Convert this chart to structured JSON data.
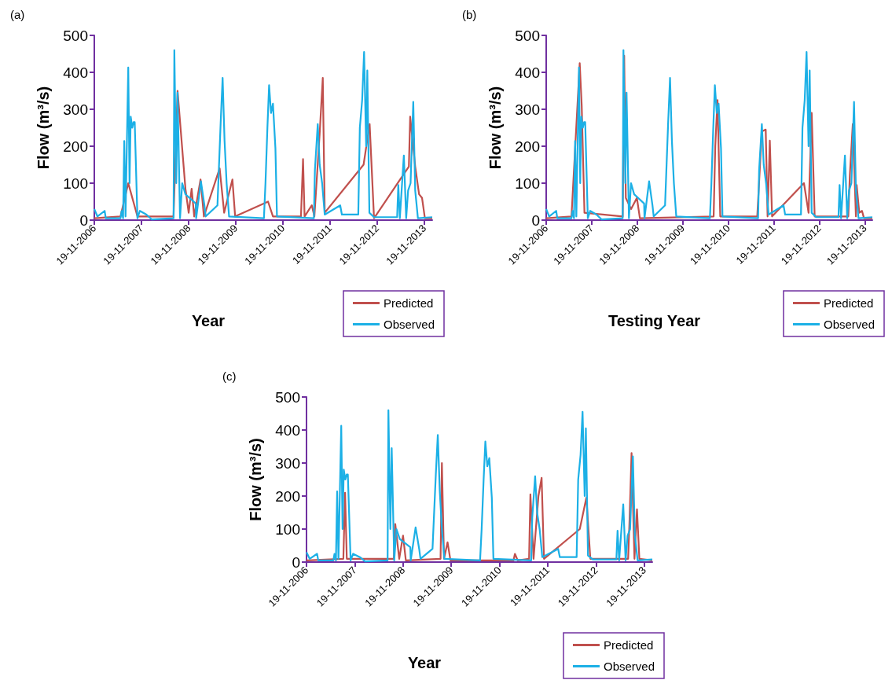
{
  "chart_data": [
    {
      "type": "line",
      "title": "(a)",
      "xlabel": "Year",
      "ylabel": "Flow (m³/s)",
      "xlim": [
        "2006-11-19",
        "2014-01-19"
      ],
      "xticks": [
        {
          "value": "2006-11-19",
          "label": "19-11-2006"
        },
        {
          "value": "2007-11-19",
          "label": "19-11-2007"
        },
        {
          "value": "2008-11-19",
          "label": "19-11-2008"
        },
        {
          "value": "2009-11-19",
          "label": "19-11-2009"
        },
        {
          "value": "2010-11-19",
          "label": "19-11-2010"
        },
        {
          "value": "2011-11-19",
          "label": "19-11-2011"
        },
        {
          "value": "2012-11-19",
          "label": "19-11-2012"
        },
        {
          "value": "2013-11-19",
          "label": "19-11-2013"
        }
      ],
      "ylim": [
        0,
        500
      ],
      "yticks": [
        0,
        100,
        200,
        300,
        400,
        500
      ],
      "legend": "bottom right",
      "marker": "none",
      "series": [
        {
          "name": "Predicted",
          "color": "#c0504d",
          "x": [
            "2006-11-19",
            "2007-06-10",
            "2007-08-09",
            "2007-10-19",
            "2008-07-25",
            "2008-08-25",
            "2008-10-25",
            "2008-11-19",
            "2008-12-12",
            "2009-01-01",
            "2009-02-19",
            "2009-03-17",
            "2009-07-17",
            "2009-08-21",
            "2009-10-24",
            "2009-11-14",
            "2010-07-27",
            "2010-09-03",
            "2011-04-08",
            "2011-04-24",
            "2011-05-06",
            "2011-07-01",
            "2011-07-21",
            "2011-08-31",
            "2011-09-24",
            "2011-10-09",
            "2012-08-05",
            "2012-09-21",
            "2012-10-25",
            "2013-07-22",
            "2013-08-01",
            "2013-09-09",
            "2013-10-09",
            "2013-11-01",
            "2013-11-23",
            "2014-01-19"
          ],
          "values": [
            5,
            10,
            100,
            10,
            10,
            350,
            85,
            20,
            85,
            10,
            110,
            10,
            140,
            20,
            110,
            10,
            50,
            10,
            10,
            165,
            10,
            40,
            10,
            235,
            385,
            20,
            150,
            260,
            5,
            145,
            280,
            145,
            70,
            60,
            5,
            5
          ]
        },
        {
          "name": "Observed",
          "color": "#1cb0e6",
          "x": [
            "2006-11-19",
            "2006-12-13",
            "2007-02-07",
            "2007-02-16",
            "2007-06-10",
            "2007-06-19",
            "2007-06-30",
            "2007-07-09",
            "2007-07-19",
            "2007-08-09",
            "2007-08-19",
            "2007-08-28",
            "2007-09-09",
            "2007-09-19",
            "2007-09-28",
            "2007-10-19",
            "2007-11-07",
            "2007-12-28",
            "2008-02-06",
            "2008-07-25",
            "2008-07-31",
            "2008-08-15",
            "2008-08-25",
            "2008-09-13",
            "2008-09-30",
            "2008-10-25",
            "2009-01-13",
            "2009-01-16",
            "2009-02-22",
            "2009-03-21",
            "2009-03-31",
            "2009-06-30",
            "2009-07-25",
            "2009-08-09",
            "2009-08-24",
            "2009-09-09",
            "2009-09-28",
            "2010-06-25",
            "2010-07-07",
            "2010-07-22",
            "2010-08-04",
            "2010-08-19",
            "2010-09-03",
            "2010-09-22",
            "2010-10-04",
            "2011-07-17",
            "2011-07-25",
            "2011-08-16",
            "2011-08-31",
            "2011-09-19",
            "2011-10-09",
            "2012-02-06",
            "2012-02-19",
            "2012-06-25",
            "2012-07-07",
            "2012-07-25",
            "2012-08-09",
            "2012-08-25",
            "2012-09-03",
            "2012-09-19",
            "2012-10-25",
            "2013-04-22",
            "2013-05-01",
            "2013-05-13",
            "2013-06-13",
            "2013-07-01",
            "2013-07-16",
            "2013-08-04",
            "2013-08-25",
            "2013-09-09",
            "2013-09-30",
            "2014-01-19"
          ],
          "values": [
            30,
            10,
            25,
            5,
            5,
            25,
            5,
            214,
            10,
            413,
            100,
            280,
            250,
            265,
            265,
            5,
            25,
            15,
            2,
            5,
            460,
            100,
            345,
            5,
            100,
            70,
            45,
            5,
            105,
            40,
            10,
            40,
            265,
            385,
            215,
            100,
            10,
            5,
            100,
            250,
            365,
            290,
            315,
            195,
            10,
            5,
            135,
            260,
            150,
            100,
            15,
            40,
            15,
            15,
            250,
            325,
            455,
            200,
            405,
            20,
            8,
            8,
            95,
            5,
            175,
            5,
            80,
            100,
            320,
            80,
            5,
            8
          ]
        }
      ]
    },
    {
      "type": "line",
      "title": "(b)",
      "xlabel": "Testing Year",
      "ylabel": "Flow (m³/s)",
      "xlim": [
        "2006-11-19",
        "2014-01-19"
      ],
      "xticks": [
        {
          "value": "2006-11-19",
          "label": "19-11-2006"
        },
        {
          "value": "2007-11-19",
          "label": "19-11-2007"
        },
        {
          "value": "2008-11-19",
          "label": "19-11-2008"
        },
        {
          "value": "2009-11-19",
          "label": "19-11-2009"
        },
        {
          "value": "2010-11-19",
          "label": "19-11-2010"
        },
        {
          "value": "2011-11-19",
          "label": "19-11-2011"
        },
        {
          "value": "2012-11-19",
          "label": "19-11-2012"
        },
        {
          "value": "2013-11-19",
          "label": "19-11-2013"
        }
      ],
      "ylim": [
        0,
        500
      ],
      "yticks": [
        0,
        100,
        200,
        300,
        400,
        500
      ],
      "legend": "bottom right",
      "marker": "none",
      "series": [
        {
          "name": "Predicted",
          "color": "#c0504d",
          "x": [
            "2006-11-19",
            "2007-06-10",
            "2007-08-15",
            "2007-08-31",
            "2007-09-22",
            "2008-07-25",
            "2008-08-06",
            "2008-08-19",
            "2008-09-30",
            "2008-11-16",
            "2008-12-10",
            "2010-07-25",
            "2010-08-07",
            "2010-08-25",
            "2010-09-16",
            "2011-07-10",
            "2011-08-16",
            "2011-09-16",
            "2011-10-01",
            "2011-10-19",
            "2011-11-06",
            "2012-07-19",
            "2012-08-25",
            "2012-09-19",
            "2012-10-13",
            "2013-07-10",
            "2013-07-22",
            "2013-08-15",
            "2013-09-09",
            "2013-09-15",
            "2013-10-06",
            "2013-10-28",
            "2013-11-13",
            "2014-01-19"
          ],
          "values": [
            5,
            10,
            425,
            310,
            20,
            10,
            445,
            60,
            30,
            60,
            5,
            10,
            200,
            325,
            10,
            10,
            240,
            245,
            10,
            215,
            10,
            100,
            20,
            290,
            10,
            10,
            120,
            260,
            10,
            95,
            20,
            25,
            5,
            5
          ]
        },
        {
          "name": "Observed",
          "color": "#1cb0e6",
          "x": [
            "2006-11-19",
            "2006-12-13",
            "2007-02-07",
            "2007-02-16",
            "2007-06-10",
            "2007-06-19",
            "2007-06-30",
            "2007-07-09",
            "2007-07-19",
            "2007-08-09",
            "2007-08-19",
            "2007-08-28",
            "2007-09-09",
            "2007-09-19",
            "2007-09-28",
            "2007-10-19",
            "2007-11-07",
            "2007-12-28",
            "2008-02-06",
            "2008-07-25",
            "2008-07-31",
            "2008-08-15",
            "2008-08-25",
            "2008-09-13",
            "2008-09-30",
            "2008-10-25",
            "2009-01-13",
            "2009-01-16",
            "2009-02-22",
            "2009-03-21",
            "2009-03-31",
            "2009-06-30",
            "2009-07-25",
            "2009-08-09",
            "2009-08-24",
            "2009-09-09",
            "2009-09-28",
            "2010-06-25",
            "2010-07-07",
            "2010-07-22",
            "2010-08-04",
            "2010-08-19",
            "2010-09-03",
            "2010-09-22",
            "2010-10-04",
            "2011-07-17",
            "2011-07-25",
            "2011-08-16",
            "2011-08-31",
            "2011-09-19",
            "2011-10-09",
            "2012-02-06",
            "2012-02-19",
            "2012-06-25",
            "2012-07-07",
            "2012-07-25",
            "2012-08-09",
            "2012-08-25",
            "2012-09-03",
            "2012-09-19",
            "2012-10-25",
            "2013-04-22",
            "2013-05-01",
            "2013-05-13",
            "2013-06-13",
            "2013-07-01",
            "2013-07-16",
            "2013-08-04",
            "2013-08-25",
            "2013-09-09",
            "2013-09-30",
            "2014-01-19"
          ],
          "values": [
            30,
            10,
            25,
            5,
            5,
            25,
            5,
            214,
            10,
            413,
            100,
            280,
            250,
            265,
            265,
            5,
            25,
            15,
            2,
            5,
            460,
            100,
            345,
            5,
            100,
            70,
            45,
            5,
            105,
            40,
            10,
            40,
            265,
            385,
            215,
            100,
            10,
            5,
            100,
            250,
            365,
            290,
            315,
            195,
            10,
            5,
            135,
            260,
            150,
            100,
            15,
            40,
            15,
            15,
            250,
            325,
            455,
            200,
            405,
            20,
            8,
            8,
            95,
            5,
            175,
            5,
            80,
            100,
            320,
            80,
            5,
            8
          ]
        }
      ]
    },
    {
      "type": "line",
      "title": "(c)",
      "xlabel": "Year",
      "ylabel": "Flow (m³/s)",
      "xlim": [
        "2006-11-19",
        "2014-01-19"
      ],
      "xticks": [
        {
          "value": "2006-11-19",
          "label": "19-11-2006"
        },
        {
          "value": "2007-11-19",
          "label": "19-11-2007"
        },
        {
          "value": "2008-11-19",
          "label": "19-11-2008"
        },
        {
          "value": "2009-11-19",
          "label": "19-11-2009"
        },
        {
          "value": "2010-11-19",
          "label": "19-11-2010"
        },
        {
          "value": "2011-11-19",
          "label": "19-11-2011"
        },
        {
          "value": "2012-11-19",
          "label": "19-11-2012"
        },
        {
          "value": "2013-11-19",
          "label": "19-11-2013"
        }
      ],
      "ylim": [
        0,
        500
      ],
      "yticks": [
        0,
        100,
        200,
        300,
        400,
        500
      ],
      "legend": "bottom right",
      "marker": "none",
      "series": [
        {
          "name": "Predicted",
          "color": "#c0504d",
          "x": [
            "2006-11-19",
            "2007-08-25",
            "2007-09-07",
            "2007-09-20",
            "2008-09-10",
            "2008-09-21",
            "2008-10-21",
            "2008-11-19",
            "2008-12-10",
            "2009-08-30",
            "2009-09-09",
            "2009-09-25",
            "2009-10-22",
            "2009-11-13",
            "2011-03-05",
            "2011-03-16",
            "2011-04-06",
            "2011-07-01",
            "2011-07-11",
            "2011-08-04",
            "2011-09-10",
            "2011-10-04",
            "2011-10-22",
            "2012-07-19",
            "2012-09-07",
            "2012-10-07",
            "2013-07-20",
            "2013-07-31",
            "2013-08-15",
            "2013-09-06",
            "2013-09-25",
            "2013-10-13",
            "2014-01-19"
          ],
          "values": [
            5,
            10,
            210,
            10,
            10,
            115,
            10,
            80,
            5,
            10,
            300,
            10,
            60,
            5,
            5,
            25,
            5,
            10,
            205,
            10,
            200,
            255,
            10,
            100,
            195,
            10,
            10,
            130,
            330,
            10,
            160,
            10,
            5
          ]
        },
        {
          "name": "Observed",
          "color": "#1cb0e6",
          "x": [
            "2006-11-19",
            "2006-12-13",
            "2007-02-07",
            "2007-02-16",
            "2007-06-10",
            "2007-06-19",
            "2007-06-30",
            "2007-07-09",
            "2007-07-19",
            "2007-08-09",
            "2007-08-19",
            "2007-08-28",
            "2007-09-09",
            "2007-09-19",
            "2007-09-28",
            "2007-10-19",
            "2007-11-07",
            "2007-12-28",
            "2008-02-06",
            "2008-07-25",
            "2008-07-31",
            "2008-08-15",
            "2008-08-25",
            "2008-09-13",
            "2008-09-30",
            "2008-10-25",
            "2009-01-13",
            "2009-01-16",
            "2009-02-22",
            "2009-03-21",
            "2009-03-31",
            "2009-06-30",
            "2009-07-25",
            "2009-08-09",
            "2009-08-24",
            "2009-09-09",
            "2009-09-28",
            "2010-06-25",
            "2010-07-07",
            "2010-07-22",
            "2010-08-04",
            "2010-08-19",
            "2010-09-03",
            "2010-09-22",
            "2010-10-04",
            "2011-07-17",
            "2011-07-25",
            "2011-08-16",
            "2011-08-31",
            "2011-09-19",
            "2011-10-09",
            "2012-02-06",
            "2012-02-19",
            "2012-06-25",
            "2012-07-07",
            "2012-07-25",
            "2012-08-09",
            "2012-08-25",
            "2012-09-03",
            "2012-09-19",
            "2012-10-25",
            "2013-04-22",
            "2013-05-01",
            "2013-05-13",
            "2013-06-13",
            "2013-07-01",
            "2013-07-16",
            "2013-08-04",
            "2013-08-25",
            "2013-09-09",
            "2013-09-30",
            "2014-01-19"
          ],
          "values": [
            30,
            10,
            25,
            5,
            5,
            25,
            5,
            214,
            10,
            413,
            100,
            280,
            250,
            265,
            265,
            5,
            25,
            15,
            2,
            5,
            460,
            100,
            345,
            5,
            100,
            70,
            45,
            5,
            105,
            40,
            10,
            40,
            265,
            385,
            215,
            100,
            10,
            5,
            100,
            250,
            365,
            290,
            315,
            195,
            10,
            5,
            135,
            260,
            150,
            100,
            15,
            40,
            15,
            15,
            250,
            325,
            455,
            200,
            405,
            20,
            8,
            8,
            95,
            5,
            175,
            5,
            80,
            100,
            320,
            80,
            5,
            8
          ]
        }
      ]
    }
  ]
}
